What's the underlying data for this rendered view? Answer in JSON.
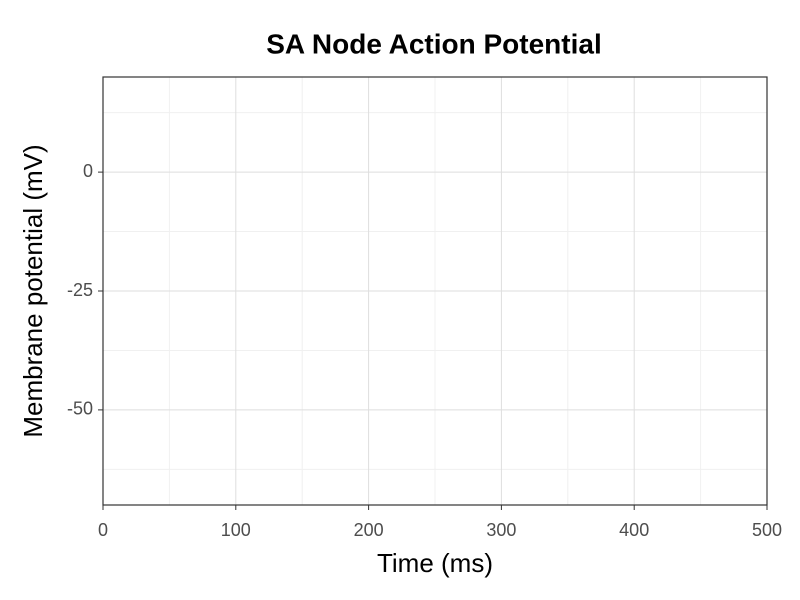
{
  "chart_data": {
    "type": "line",
    "title": "SA Node Action Potential",
    "x_label": "Time (ms)",
    "y_label": "Membrane potential (mV)",
    "series": [],
    "xlim": [
      0,
      500
    ],
    "xticks": [
      0,
      100,
      200,
      300,
      400,
      500
    ],
    "ylim": [
      -70,
      20
    ],
    "yticks": [
      0,
      -25,
      -50
    ],
    "grid": true
  }
}
